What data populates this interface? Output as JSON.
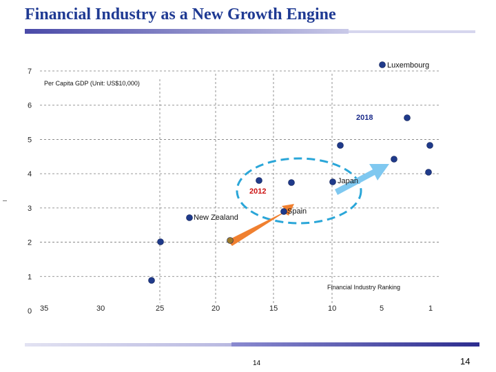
{
  "slide": {
    "title": "Financial Industry as a New Growth Engine",
    "page_center": "14",
    "page_right": "14"
  },
  "chart_data": {
    "type": "scatter",
    "title": "",
    "xlabel": "Financial Industry Ranking",
    "ylabel": "Per Capita GDP (Unit: US$10,000)",
    "x_reversed": true,
    "ylim": [
      0,
      7
    ],
    "yticks": [
      "0",
      "1",
      "2",
      "3",
      "4",
      "5",
      "6",
      "7"
    ],
    "xticks": [
      "35",
      "30",
      "25",
      "20",
      "15",
      "10",
      "5",
      "1"
    ],
    "grid": "dashed horizontal and vertical",
    "points": [
      {
        "label": "Luxembourg",
        "rank": 5,
        "gdp": 7.8,
        "color": "#1f3a8a"
      },
      {
        "label": "",
        "rank": 3,
        "gdp": 5.5,
        "color": "#1f3a8a"
      },
      {
        "label": "",
        "rank": 10,
        "gdp": 4.7,
        "color": "#1f3a8a"
      },
      {
        "label": "",
        "rank": 1,
        "gdp": 4.7,
        "color": "#1f3a8a"
      },
      {
        "label": "",
        "rank": 5,
        "gdp": 4.3,
        "color": "#1f3a8a"
      },
      {
        "label": "",
        "rank": 1,
        "gdp": 3.9,
        "color": "#1f3a8a"
      },
      {
        "label": "Japan",
        "rank": 11,
        "gdp": 3.7,
        "color": "#1f3a8a"
      },
      {
        "label": "",
        "rank": 16,
        "gdp": 3.7,
        "color": "#1f3a8a"
      },
      {
        "label": "",
        "rank": 13,
        "gdp": 3.6,
        "color": "#1f3a8a"
      },
      {
        "label": "Spain",
        "rank": 14,
        "gdp": 2.7,
        "color": "#1f3a8a"
      },
      {
        "label": "New Zealand",
        "rank": 24,
        "gdp": 2.6,
        "color": "#1f3a8a"
      },
      {
        "label": "",
        "rank": 25,
        "gdp": 1.9,
        "color": "#1f3a8a"
      },
      {
        "label": "",
        "rank": 19,
        "gdp": 1.9,
        "color": "#9c7a2a"
      },
      {
        "label": "",
        "rank": 25,
        "gdp": 0.8,
        "color": "#1f3a8a"
      }
    ],
    "annotations": {
      "year_start": "2012",
      "year_end": "2018",
      "year_start_color": "#cc1111",
      "year_end_color": "#1a2a8a",
      "ellipse_color": "#2aa6d8",
      "arrow1_color": "#f08030",
      "arrow2_color": "#7fc8f0"
    }
  }
}
